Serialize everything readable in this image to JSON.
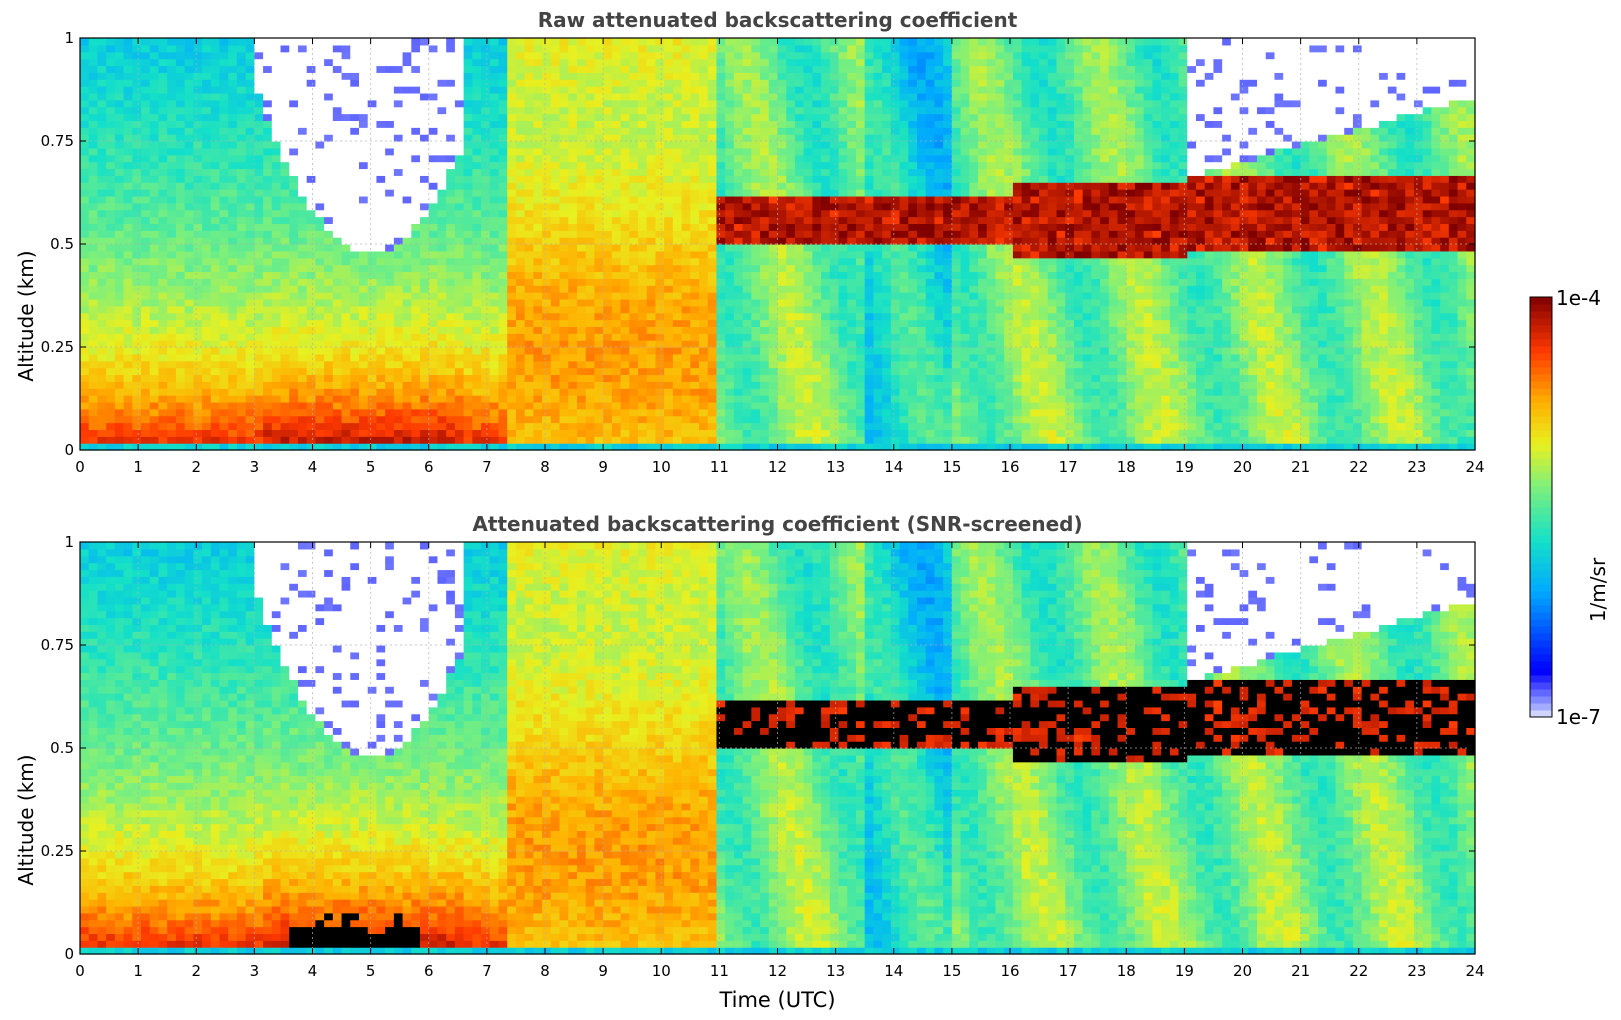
{
  "chart_data": [
    {
      "type": "heatmap",
      "title": "Raw attenuated backscattering coefficient",
      "xlabel": "",
      "ylabel": "Altitude (km)",
      "xlim": [
        0,
        24
      ],
      "ylim": [
        0,
        1
      ],
      "x_ticks": [
        "0",
        "1",
        "2",
        "3",
        "4",
        "5",
        "6",
        "7",
        "8",
        "9",
        "10",
        "11",
        "12",
        "13",
        "14",
        "15",
        "16",
        "17",
        "18",
        "19",
        "20",
        "21",
        "22",
        "23",
        "24"
      ],
      "y_ticks": [
        "0",
        "0.25",
        "0.5",
        "0.75",
        "1"
      ],
      "grid": true,
      "colorscale": "jet",
      "screened": false
    },
    {
      "type": "heatmap",
      "title": "Attenuated backscattering coefficient (SNR-screened)",
      "xlabel": "Time (UTC)",
      "ylabel": "Altitude (km)",
      "xlim": [
        0,
        24
      ],
      "ylim": [
        0,
        1
      ],
      "x_ticks": [
        "0",
        "1",
        "2",
        "3",
        "4",
        "5",
        "6",
        "7",
        "8",
        "9",
        "10",
        "11",
        "12",
        "13",
        "14",
        "15",
        "16",
        "17",
        "18",
        "19",
        "20",
        "21",
        "22",
        "23",
        "24"
      ],
      "y_ticks": [
        "0",
        "0.25",
        "0.5",
        "0.75",
        "1"
      ],
      "grid": true,
      "colorscale": "jet",
      "screened": true
    }
  ],
  "colorbar": {
    "unit": "1/m/sr",
    "max_label": "1e-4",
    "min_label": "1e-7",
    "range": [
      1e-07,
      0.0001
    ],
    "scale": "log"
  }
}
